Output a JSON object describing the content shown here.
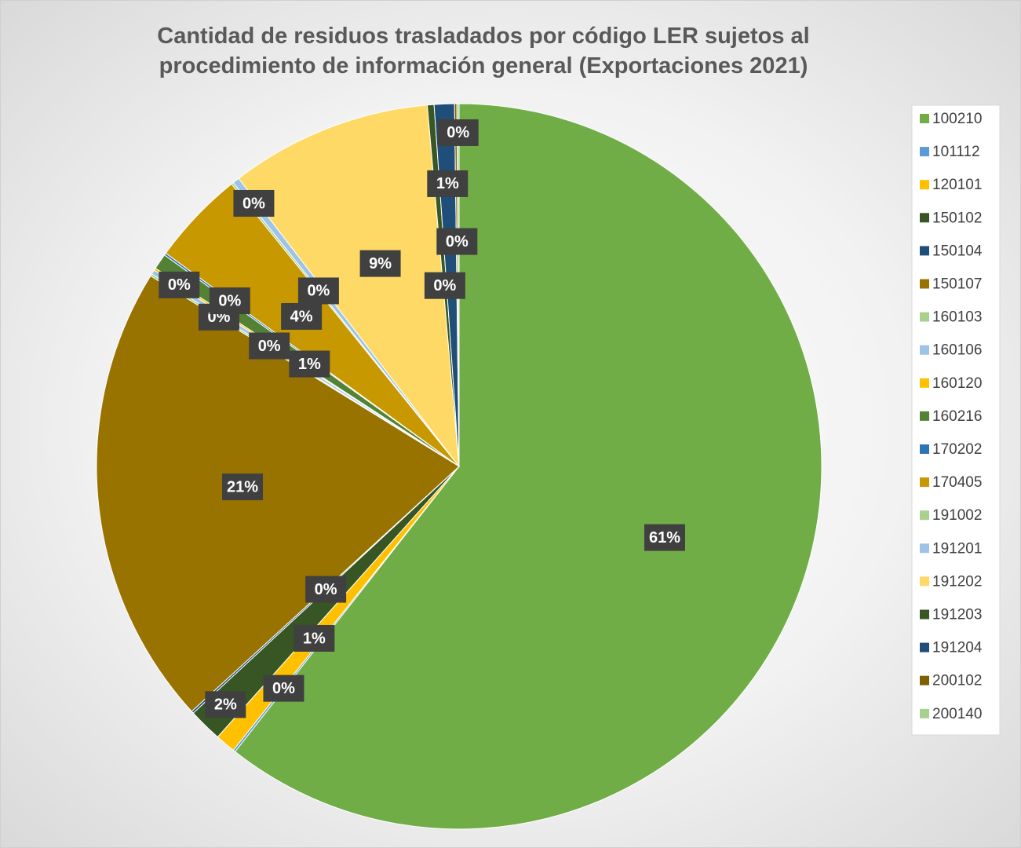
{
  "chart_data": {
    "type": "pie",
    "title": "Cantidad de residuos trasladados por código LER sujetos al procedimiento de información general (Exportaciones 2021)",
    "categories": [
      "100210",
      "101112",
      "120101",
      "150102",
      "150104",
      "150107",
      "160103",
      "160106",
      "160120",
      "160216",
      "170202",
      "170405",
      "191002",
      "191201",
      "191202",
      "191203",
      "191204",
      "200102",
      "200140"
    ],
    "values": [
      60.6,
      0.1,
      0.9,
      1.5,
      0.1,
      20.6,
      0.1,
      0.2,
      0.1,
      0.7,
      0.1,
      4.2,
      0.1,
      0.3,
      9.0,
      0.3,
      0.9,
      0.1,
      0.1
    ],
    "value_labels": [
      "61%",
      "0%",
      "1%",
      "2%",
      "0%",
      "21%",
      "0%",
      "0%",
      "0%",
      "1%",
      "0%",
      "4%",
      "0%",
      "0%",
      "9%",
      "0%",
      "1%",
      "0%",
      "0%"
    ],
    "colors": [
      "#70ad47",
      "#5b9bd5",
      "#ffc000",
      "#375623",
      "#1f4e79",
      "#997300",
      "#a9d18e",
      "#9dc3e6",
      "#ffc000",
      "#548235",
      "#2e75b6",
      "#c89800",
      "#a9d18e",
      "#9dc3e6",
      "#ffd966",
      "#385723",
      "#1f4e79",
      "#7f6000",
      "#a9d18e"
    ],
    "legend": "right"
  }
}
